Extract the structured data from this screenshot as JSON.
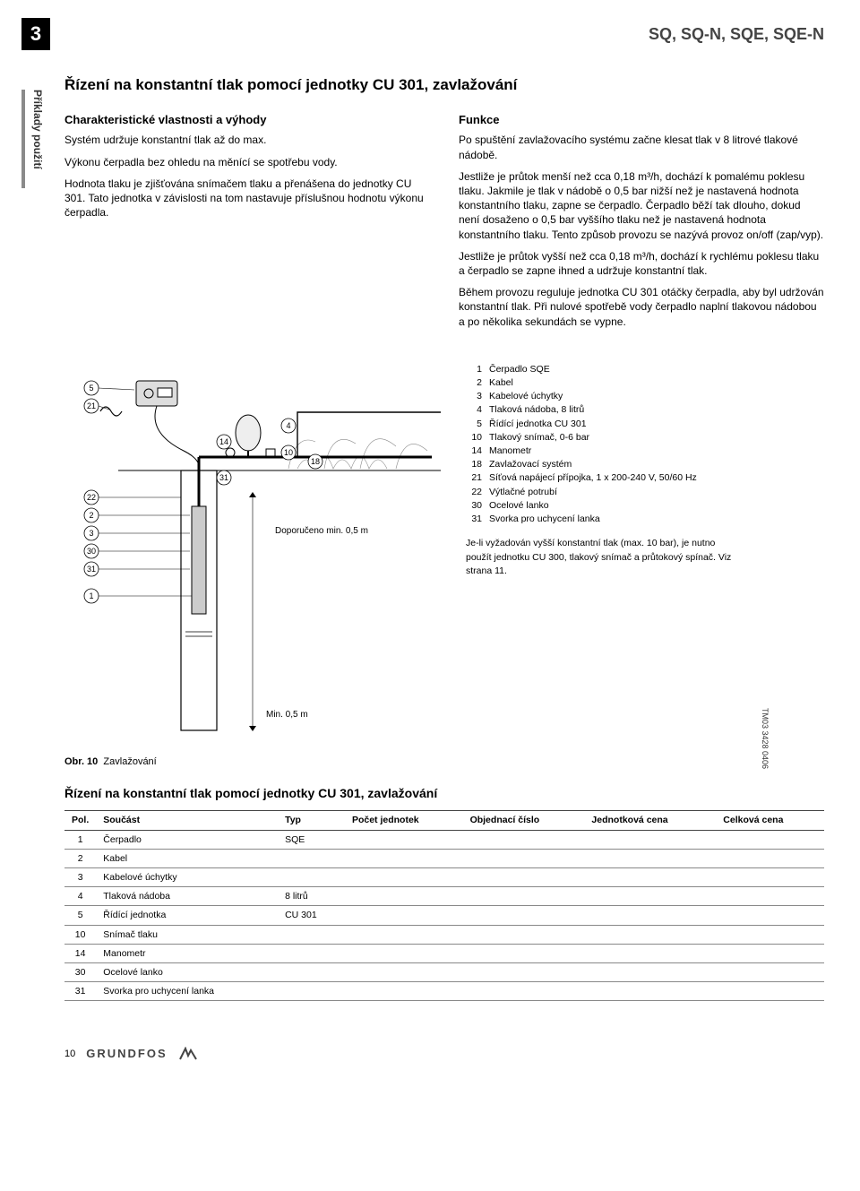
{
  "page_number": "3",
  "product_header": "SQ, SQ-N, SQE, SQE-N",
  "side_tab": "Příklady použití",
  "section_title": "Řízení na konstantní tlak pomocí jednotky CU 301, zavlažování",
  "left": {
    "h1": "Charakteristické vlastnosti a výhody",
    "p1": "Systém udržuje konstantní tlak až do max.",
    "p2": "Výkonu čerpadla bez ohledu na měnící se spotřebu vody.",
    "p3": "Hodnota tlaku je zjišťována snímačem tlaku a přenášena do jednotky CU 301. Tato jednotka v závislosti na tom nastavuje příslušnou hodnotu výkonu čerpadla."
  },
  "right": {
    "h1": "Funkce",
    "p1": "Po spuštění zavlažovacího systému začne klesat tlak v 8 litrové tlakové nádobě.",
    "p2": "Jestliže je průtok menší než cca 0,18 m³/h, dochází k pomalému poklesu tlaku. Jakmile je tlak v nádobě o 0,5 bar nižší než je nastavená hodnota konstantního tlaku, zapne se čerpadlo. Čerpadlo běží tak dlouho, dokud není dosaženo o 0,5 bar vyššího tlaku než je nastavená hodnota konstantního tlaku. Tento způsob provozu se nazývá provoz on/off (zap/vyp).",
    "p3": "Jestliže je průtok vyšší než cca 0,18 m³/h, dochází k rychlému poklesu tlaku a čerpadlo se zapne ihned a udržuje konstantní tlak.",
    "p4": "Během provozu reguluje jednotka CU 301 otáčky čerpadla, aby byl udržován konstantní tlak. Při nulové spotřebě vody čerpadlo naplní tlakovou nádobou a po několika sekundách se vypne."
  },
  "diagram": {
    "callouts": [
      "5",
      "21",
      "22",
      "2",
      "3",
      "30",
      "31",
      "1",
      "14",
      "31",
      "4",
      "10",
      "18"
    ],
    "label_a": "Doporučeno min. 0,5 m",
    "label_b": "Min. 0,5 m"
  },
  "legend": {
    "items": [
      {
        "n": "1",
        "t": "Čerpadlo SQE"
      },
      {
        "n": "2",
        "t": "Kabel"
      },
      {
        "n": "3",
        "t": "Kabelové úchytky"
      },
      {
        "n": "4",
        "t": "Tlaková nádoba, 8 litrů"
      },
      {
        "n": "5",
        "t": "Řídící jednotka CU 301"
      },
      {
        "n": "10",
        "t": "Tlakový snímač, 0-6 bar"
      },
      {
        "n": "14",
        "t": "Manometr"
      },
      {
        "n": "18",
        "t": "Zavlažovací systém"
      },
      {
        "n": "21",
        "t": "Síťová napájecí přípojka, 1 x 200-240 V, 50/60 Hz"
      },
      {
        "n": "22",
        "t": "Výtlačné potrubí"
      },
      {
        "n": "30",
        "t": "Ocelové lanko"
      },
      {
        "n": "31",
        "t": "Svorka pro uchycení lanka"
      }
    ],
    "note": "Je-li vyžadován vyšší konstantní tlak (max. 10 bar), je nutno použít jednotku CU 300, tlakový snímač a průtokový spínač. Viz strana 11."
  },
  "fig_caption_label": "Obr. 10",
  "fig_caption_text": "Zavlažování",
  "image_code": "TM03 3428 0406",
  "section2_title": "Řízení na konstantní tlak pomocí jednotky CU 301, zavlažování",
  "table": {
    "columns": [
      "Pol.",
      "Součást",
      "Typ",
      "Počet jednotek",
      "Objednací číslo",
      "Jednotková cena",
      "Celková cena"
    ],
    "rows": [
      [
        "1",
        "Čerpadlo",
        "SQE",
        "",
        "",
        "",
        ""
      ],
      [
        "2",
        "Kabel",
        "",
        "",
        "",
        "",
        ""
      ],
      [
        "3",
        "Kabelové úchytky",
        "",
        "",
        "",
        "",
        ""
      ],
      [
        "4",
        "Tlaková nádoba",
        "8 litrů",
        "",
        "",
        "",
        ""
      ],
      [
        "5",
        "Řídící jednotka",
        "CU 301",
        "",
        "",
        "",
        ""
      ],
      [
        "10",
        "Snímač tlaku",
        "",
        "",
        "",
        "",
        ""
      ],
      [
        "14",
        "Manometr",
        "",
        "",
        "",
        "",
        ""
      ],
      [
        "30",
        "Ocelové lanko",
        "",
        "",
        "",
        "",
        ""
      ],
      [
        "31",
        "Svorka pro uchycení lanka",
        "",
        "",
        "",
        "",
        ""
      ]
    ]
  },
  "footer_page": "10",
  "brand": "GRUNDFOS"
}
